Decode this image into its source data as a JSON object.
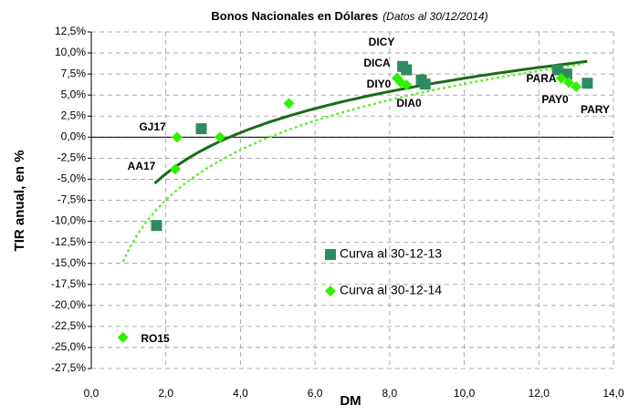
{
  "chart_data": {
    "type": "scatter",
    "title": "Bonos Nacionales en Dólares",
    "subtitle": "(Datos al 30/12/2014)",
    "x_label": "DM",
    "y_label": "TIR anual, en %",
    "xlim": [
      0,
      14
    ],
    "ylim": [
      -27.5,
      12.5
    ],
    "xticks": [
      {
        "value": 0,
        "label": "0,0"
      },
      {
        "value": 2,
        "label": "2,0"
      },
      {
        "value": 4,
        "label": "4,0"
      },
      {
        "value": 6,
        "label": "6,0"
      },
      {
        "value": 8,
        "label": "8,0"
      },
      {
        "value": 10,
        "label": "10,0"
      },
      {
        "value": 12,
        "label": "12,0"
      },
      {
        "value": 14,
        "label": "14,0"
      }
    ],
    "yticks": [
      {
        "value": 12.5,
        "label": "12,5%"
      },
      {
        "value": 10,
        "label": "10,0%"
      },
      {
        "value": 7.5,
        "label": "7,5%"
      },
      {
        "value": 5,
        "label": "5,0%"
      },
      {
        "value": 2.5,
        "label": "2,5%"
      },
      {
        "value": 0,
        "label": "0,0%"
      },
      {
        "value": -2.5,
        "label": "-2,5%"
      },
      {
        "value": -5,
        "label": "-5,0%"
      },
      {
        "value": -7.5,
        "label": "-7,5%"
      },
      {
        "value": -10,
        "label": "-10,0%"
      },
      {
        "value": -12.5,
        "label": "-12,5%"
      },
      {
        "value": -15,
        "label": "-15,0%"
      },
      {
        "value": -17.5,
        "label": "-17,5%"
      },
      {
        "value": -20,
        "label": "-20,0%"
      },
      {
        "value": -22.5,
        "label": "-22,5%"
      },
      {
        "value": -25,
        "label": "-25,0%"
      },
      {
        "value": -27.5,
        "label": "-27,5%"
      }
    ],
    "grid": true,
    "series": [
      {
        "name": "Curva al 30-12-13",
        "marker": "square",
        "color": "#2e8b60",
        "x": [
          1.75,
          2.95,
          8.35,
          8.45,
          8.85,
          8.95,
          12.5,
          12.75,
          13.3
        ],
        "values": [
          -10.5,
          1.0,
          8.4,
          8.0,
          6.8,
          6.3,
          8.0,
          7.5,
          6.4
        ],
        "trendline": {
          "type": "log",
          "a": 7.05,
          "b": -9.24,
          "xrange": [
            1.7,
            13.3
          ],
          "color": "#1a6b1a",
          "dashed": false
        }
      },
      {
        "name": "Curva al 30-12-14",
        "marker": "diamond",
        "color": "#33ee00",
        "x": [
          0.85,
          2.25,
          2.3,
          3.45,
          5.3,
          8.2,
          8.3,
          8.45,
          12.6,
          12.8,
          13.0
        ],
        "values": [
          -23.8,
          -3.8,
          0.0,
          0.0,
          4.0,
          7.0,
          6.5,
          6.2,
          7.0,
          6.5,
          6.0
        ],
        "trendline": {
          "type": "log",
          "a": 8.57,
          "b": -13.41,
          "xrange": [
            0.85,
            13.2
          ],
          "color": "#66ee33",
          "dashed": true
        }
      }
    ],
    "annotations": [
      "DICY",
      "DICA",
      "DIY0",
      "DIA0",
      "PARA",
      "PAY0",
      "PARY",
      "GJ17",
      "AA17",
      "RO15"
    ]
  }
}
